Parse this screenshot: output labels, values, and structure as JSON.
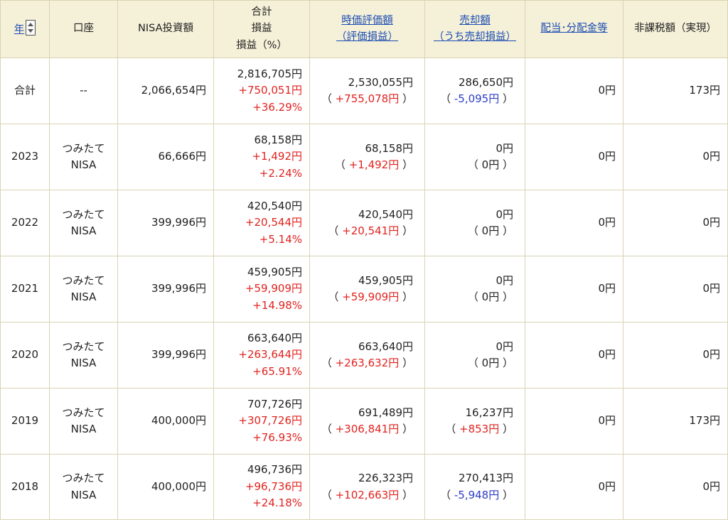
{
  "header": {
    "year": "年",
    "account": "口座",
    "nisa_investment": "NISA投資額",
    "total_line1": "合計",
    "total_line2": "損益",
    "total_line3": "損益（%）",
    "market_value_line1": "時価評価額",
    "market_value_line2": "（評価損益）",
    "sale_line1": "売却額",
    "sale_line2": "（うち売却損益）",
    "dividend": "配当･分配金等",
    "tax_free": "非課税額（実現）"
  },
  "rows": [
    {
      "year": "合計",
      "account_line1": "--",
      "account_line2": "",
      "investment": "2,066,654円",
      "total": "2,816,705円",
      "total_pl": "+750,051円",
      "total_pct": "+36.29%",
      "market_value": "2,530,055円",
      "market_pl": "+755,078円",
      "sale": "286,650円",
      "sale_pl": "-5,095円",
      "dividend": "0円",
      "tax_free": "173円"
    },
    {
      "year": "2023",
      "account_line1": "つみたて",
      "account_line2": "NISA",
      "investment": "66,666円",
      "total": "68,158円",
      "total_pl": "+1,492円",
      "total_pct": "+2.24%",
      "market_value": "68,158円",
      "market_pl": "+1,492円",
      "sale": "0円",
      "sale_pl": "0円",
      "dividend": "0円",
      "tax_free": "0円"
    },
    {
      "year": "2022",
      "account_line1": "つみたて",
      "account_line2": "NISA",
      "investment": "399,996円",
      "total": "420,540円",
      "total_pl": "+20,544円",
      "total_pct": "+5.14%",
      "market_value": "420,540円",
      "market_pl": "+20,541円",
      "sale": "0円",
      "sale_pl": "0円",
      "dividend": "0円",
      "tax_free": "0円"
    },
    {
      "year": "2021",
      "account_line1": "つみたて",
      "account_line2": "NISA",
      "investment": "399,996円",
      "total": "459,905円",
      "total_pl": "+59,909円",
      "total_pct": "+14.98%",
      "market_value": "459,905円",
      "market_pl": "+59,909円",
      "sale": "0円",
      "sale_pl": "0円",
      "dividend": "0円",
      "tax_free": "0円"
    },
    {
      "year": "2020",
      "account_line1": "つみたて",
      "account_line2": "NISA",
      "investment": "399,996円",
      "total": "663,640円",
      "total_pl": "+263,644円",
      "total_pct": "+65.91%",
      "market_value": "663,640円",
      "market_pl": "+263,632円",
      "sale": "0円",
      "sale_pl": "0円",
      "dividend": "0円",
      "tax_free": "0円"
    },
    {
      "year": "2019",
      "account_line1": "つみたて",
      "account_line2": "NISA",
      "investment": "400,000円",
      "total": "707,726円",
      "total_pl": "+307,726円",
      "total_pct": "+76.93%",
      "market_value": "691,489円",
      "market_pl": "+306,841円",
      "sale": "16,237円",
      "sale_pl": "+853円",
      "dividend": "0円",
      "tax_free": "173円"
    },
    {
      "year": "2018",
      "account_line1": "つみたて",
      "account_line2": "NISA",
      "investment": "400,000円",
      "total": "496,736円",
      "total_pl": "+96,736円",
      "total_pct": "+24.18%",
      "market_value": "226,323円",
      "market_pl": "+102,663円",
      "sale": "270,413円",
      "sale_pl": "-5,948円",
      "dividend": "0円",
      "tax_free": "0円"
    }
  ],
  "colors": {
    "header_bg": "#f5f0d8",
    "border": "#d9d3b3",
    "link": "#1b4db3",
    "positive": "#e0231f",
    "negative": "#2c3cc8"
  },
  "icons": {
    "sort": "sort-toggle-icon"
  }
}
